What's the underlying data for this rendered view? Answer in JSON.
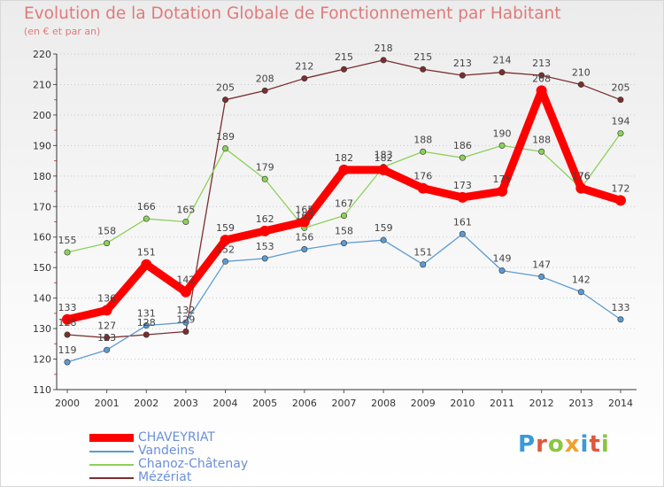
{
  "header": {
    "title": "Evolution de la Dotation Globale de Fonctionnement par Habitant",
    "subtitle": "(en € et par an)"
  },
  "logo": {
    "text": "Proxiti",
    "colors": [
      "#3a9ad9",
      "#e0573b",
      "#8cc63f",
      "#f0a030",
      "#3a9ad9",
      "#e0573b",
      "#8cc63f"
    ]
  },
  "chart_data": {
    "type": "line",
    "x": [
      "2000",
      "2001",
      "2002",
      "2003",
      "2004",
      "2005",
      "2006",
      "2007",
      "2008",
      "2009",
      "2010",
      "2011",
      "2012",
      "2013",
      "2014"
    ],
    "yticks": [
      110,
      120,
      130,
      140,
      150,
      160,
      170,
      180,
      190,
      200,
      210,
      220
    ],
    "ylim": [
      110,
      220
    ],
    "grid": "horizontal-dotted",
    "legend_position": "bottom-left",
    "series": [
      {
        "name": "CHAVEYRIAT",
        "color": "#ff0000",
        "values": [
          133,
          136,
          151,
          142,
          159,
          162,
          165,
          182,
          182,
          176,
          173,
          175,
          208,
          176,
          172
        ]
      },
      {
        "name": "Vandeins",
        "color": "#5b9bd5",
        "values": [
          119,
          123,
          131,
          132,
          152,
          153,
          156,
          158,
          159,
          151,
          161,
          149,
          147,
          142,
          133
        ]
      },
      {
        "name": "Chanoz-Châtenay",
        "color": "#8cd15a",
        "values": [
          155,
          158,
          166,
          165,
          189,
          179,
          163,
          167,
          183,
          188,
          186,
          190,
          188,
          176,
          194
        ]
      },
      {
        "name": "Mézériat",
        "color": "#7b2e2e",
        "values": [
          128,
          127,
          128,
          129,
          205,
          208,
          212,
          215,
          218,
          215,
          213,
          214,
          213,
          210,
          205
        ]
      }
    ]
  }
}
